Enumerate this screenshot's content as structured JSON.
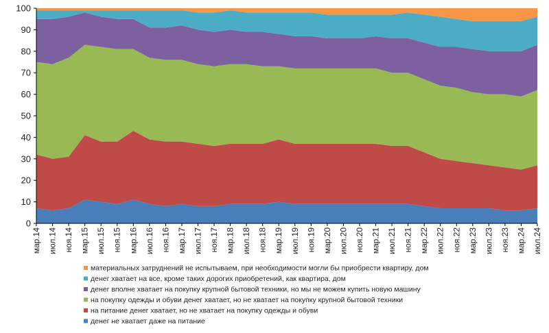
{
  "chart_data": {
    "type": "area",
    "stacked": true,
    "ylim": [
      0,
      100
    ],
    "yticks": [
      0,
      10,
      20,
      30,
      40,
      50,
      60,
      70,
      80,
      90,
      100
    ],
    "x_tick_labels": [
      "мар.14",
      "июл.14",
      "ноя.14",
      "мар.15",
      "июл.15",
      "ноя.15",
      "мар.16",
      "июл.16",
      "ноя.16",
      "мар.17",
      "июл.17",
      "ноя.17",
      "мар.18",
      "июл.18",
      "ноя.18",
      "мар.19",
      "июл.19",
      "ноя.19",
      "мар.20",
      "июл.20",
      "ноя.20",
      "мар.21",
      "июл.21",
      "ноя.21",
      "мар.22",
      "июл.22",
      "ноя.22",
      "мар.23",
      "июл.23",
      "ноя.23",
      "мар.24",
      "июл.24"
    ],
    "legend_position": "bottom",
    "series": [
      {
        "name": "денег не хватает даже на питание",
        "color": "#4a7ebb",
        "values": [
          7,
          6,
          7,
          11,
          10,
          9,
          11,
          9,
          8,
          9,
          8,
          8,
          9,
          9,
          9,
          10,
          9,
          9,
          9,
          9,
          9,
          9,
          9,
          9,
          8,
          7,
          7,
          7,
          7,
          6,
          6,
          7
        ]
      },
      {
        "name": "на питание денег хватает, но не хватает на покупку одежды и обуви",
        "color": "#be4b48",
        "values": [
          25,
          24,
          24,
          30,
          28,
          29,
          32,
          30,
          30,
          29,
          29,
          28,
          28,
          28,
          28,
          29,
          28,
          28,
          28,
          28,
          28,
          28,
          27,
          27,
          25,
          23,
          22,
          21,
          20,
          20,
          19,
          20
        ]
      },
      {
        "name": "на покупку одежды и обуви денег хватает, но не хватает на покупку крупной бытовой техники",
        "color": "#98b954",
        "values": [
          43,
          44,
          46,
          42,
          44,
          43,
          38,
          38,
          38,
          38,
          37,
          37,
          37,
          37,
          36,
          34,
          35,
          35,
          35,
          35,
          35,
          35,
          34,
          34,
          34,
          34,
          34,
          33,
          33,
          34,
          34,
          35
        ]
      },
      {
        "name": "денег вполне хватает на покупку крупной бытовой техники, но мы не можем купить новую машину",
        "color": "#7d60a0",
        "values": [
          20,
          21,
          19,
          15,
          14,
          14,
          14,
          14,
          15,
          16,
          16,
          16,
          16,
          15,
          16,
          15,
          15,
          15,
          14,
          14,
          14,
          15,
          16,
          16,
          17,
          18,
          19,
          20,
          20,
          20,
          21,
          21
        ]
      },
      {
        "name": "денег хватает на все, кроме таких дорогих приобретений, как квартира, дом",
        "color": "#4bacc6",
        "values": [
          4,
          4,
          3,
          1,
          3,
          4,
          4,
          8,
          8,
          7,
          8,
          9,
          9,
          9,
          9,
          10,
          11,
          11,
          11,
          11,
          11,
          10,
          11,
          12,
          13,
          14,
          13,
          13,
          14,
          14,
          14,
          13
        ]
      },
      {
        "name": "материальных затруднений не испытываем, при необходимости могли бы приобрести квартиру, дом",
        "color": "#f79646",
        "values": [
          1,
          1,
          1,
          1,
          1,
          1,
          1,
          1,
          1,
          1,
          2,
          2,
          1,
          2,
          2,
          2,
          2,
          2,
          3,
          3,
          3,
          3,
          3,
          2,
          3,
          4,
          5,
          6,
          6,
          6,
          6,
          4
        ]
      }
    ]
  }
}
